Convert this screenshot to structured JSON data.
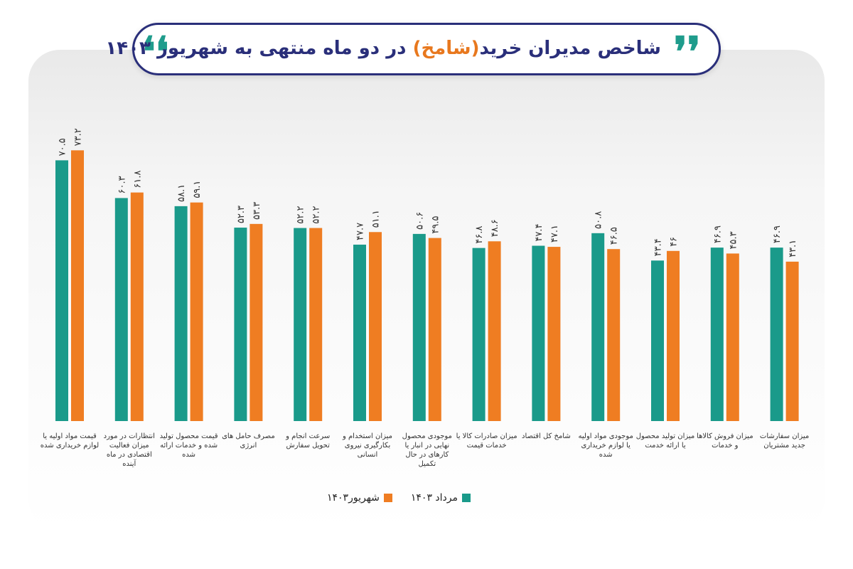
{
  "title": {
    "prefix": "شاخص مدیران خرید",
    "highlight": "(شامخ)",
    "suffix": " در دو ماه منتهی به شهریور ۱۴۰۳"
  },
  "quote_glyphs": {
    "left": "❛❛",
    "right": "❜❜"
  },
  "colors": {
    "series_1": "#1a9a8a",
    "series_2": "#ef7d22",
    "title": "#2a2f7a"
  },
  "legend": {
    "series_1_label": "مرداد ۱۴۰۳",
    "series_2_label": "شهریور۱۴۰۳"
  },
  "chart_data": {
    "type": "bar",
    "categories": [
      [
        "قیمت مواد اولیه یا",
        "لوازم خریداری شده"
      ],
      [
        "انتظارات در مورد",
        "میزان فعالیت",
        "اقتصادی در ماه",
        "آینده"
      ],
      [
        "قیمت محصول تولید",
        "شده و خدمات ارائه",
        "شده"
      ],
      [
        "مصرف حامل های",
        "انرژی"
      ],
      [
        "سرعت انجام و",
        "تحویل سفارش"
      ],
      [
        "میزان استخدام و",
        "بکارگیری نیروی",
        "انسانی"
      ],
      [
        "موجودی محصول",
        "نهایی در انبار یا",
        "کارهای در حال",
        "تکمیل"
      ],
      [
        "میزان صادرات کالا یا",
        "خدمات قیمت"
      ],
      [
        "شامخ کل اقتصاد"
      ],
      [
        "موجودی مواد اولیه",
        "یا لوازم خریداری",
        "شده"
      ],
      [
        "میزان تولید محصول",
        "یا ارائه خدمت"
      ],
      [
        "میزان فروش کالاها",
        "و خدمات"
      ],
      [
        "میزان سفارشات",
        "جدید مشتریان"
      ]
    ],
    "series": [
      {
        "name": "مرداد ۱۴۰۳",
        "values": [
          70.5,
          60.3,
          58.1,
          52.3,
          52.2,
          47.7,
          50.6,
          46.8,
          47.4,
          50.8,
          43.4,
          46.9,
          46.9
        ],
        "labels": [
          "۷۰.۵",
          "۶۰.۳",
          "۵۸.۱",
          "۵۲.۳",
          "۵۲.۲",
          "۴۷.۷",
          "۵۰.۶",
          "۴۶.۸",
          "۴۷.۴",
          "۵۰.۸",
          "۴۳.۴",
          "۴۶.۹",
          "۴۶.۹"
        ]
      },
      {
        "name": "شهریور۱۴۰۳",
        "values": [
          73.2,
          61.8,
          59.1,
          53.3,
          52.2,
          51.1,
          49.5,
          48.6,
          47.1,
          46.5,
          46.0,
          45.3,
          43.1
        ],
        "labels": [
          "۷۳.۲",
          "۶۱.۸",
          "۵۹.۱",
          "۵۳.۳",
          "۵۲.۲",
          "۵۱.۱",
          "۴۹.۵",
          "۴۸.۶",
          "۴۷.۱",
          "۴۶.۵",
          "۴۶",
          "۴۵.۳",
          "۴۳.۱"
        ]
      }
    ],
    "ylim": [
      0,
      100
    ],
    "grid": false,
    "legend_position": "bottom-center"
  }
}
